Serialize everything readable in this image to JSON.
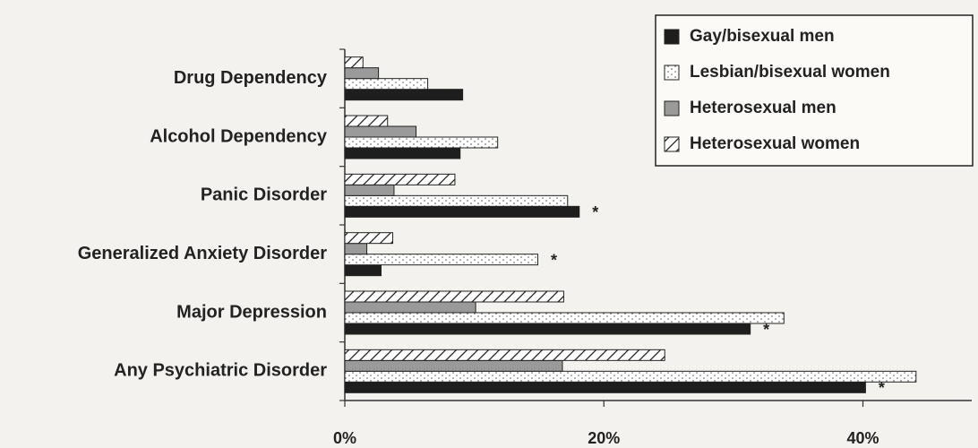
{
  "chart_data": {
    "type": "hbar",
    "categories": [
      "Drug Dependency",
      "Alcohol Dependency",
      "Panic Disorder",
      "Generalized Anxiety Disorder",
      "Major Depression",
      "Any Psychiatric Disorder"
    ],
    "series": [
      {
        "name": "Gay/bisexual men",
        "color": "#1e1e1e",
        "pattern": "solid",
        "values": [
          9.1,
          8.9,
          18.1,
          2.8,
          31.3,
          40.2
        ]
      },
      {
        "name": "Lesbian/bisexual women",
        "color": "#ffffff",
        "pattern": "dots",
        "values": [
          6.4,
          11.8,
          17.2,
          14.9,
          33.9,
          44.1
        ]
      },
      {
        "name": "Heterosexual men",
        "color": "#9a9a9a",
        "pattern": "solid",
        "values": [
          2.6,
          5.5,
          3.8,
          1.7,
          10.1,
          16.8
        ]
      },
      {
        "name": "Heterosexual women",
        "color": "#ffffff",
        "pattern": "hatch",
        "values": [
          1.4,
          3.3,
          8.5,
          3.7,
          16.9,
          24.7
        ]
      }
    ],
    "xlim": [
      0,
      48.4
    ],
    "xticks": [
      {
        "value": 0,
        "label": "0%"
      },
      {
        "value": 20,
        "label": "20%"
      },
      {
        "value": 40,
        "label": "40%"
      }
    ],
    "annotations": [
      {
        "text": "*",
        "category": "Panic Disorder",
        "series": "Gay/bisexual men"
      },
      {
        "text": "*",
        "category": "Generalized Anxiety Disorder",
        "series": "Lesbian/bisexual women"
      },
      {
        "text": "*",
        "category": "Major Depression",
        "series": "Gay/bisexual men"
      },
      {
        "text": "*",
        "category": "Any Psychiatric Disorder",
        "series": "Gay/bisexual men"
      }
    ],
    "legend": "top-right"
  }
}
